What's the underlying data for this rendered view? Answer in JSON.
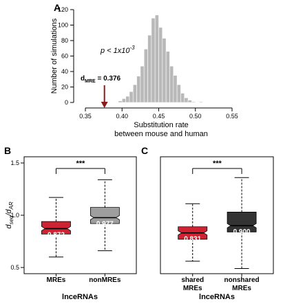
{
  "chart_data": [
    {
      "panel": "A",
      "type": "bar",
      "subtype": "histogram",
      "xlabel": "Substitution rate\nbetween mouse and human",
      "xlabel_lines": [
        "Substitution rate",
        "between mouse and human"
      ],
      "ylabel": "Number of simulations",
      "xlim": [
        0.35,
        0.55
      ],
      "ylim": [
        0,
        120
      ],
      "xticks": [
        "0.35",
        "0.40",
        "0.45",
        "0.50",
        "0.55"
      ],
      "yticks": [
        "0",
        "20",
        "40",
        "60",
        "80",
        "100",
        "120"
      ],
      "bin_width": 0.005,
      "bins": [
        {
          "x": 0.395,
          "count": 2
        },
        {
          "x": 0.4,
          "count": 5
        },
        {
          "x": 0.405,
          "count": 8
        },
        {
          "x": 0.41,
          "count": 14
        },
        {
          "x": 0.415,
          "count": 23
        },
        {
          "x": 0.42,
          "count": 34
        },
        {
          "x": 0.425,
          "count": 47
        },
        {
          "x": 0.43,
          "count": 69
        },
        {
          "x": 0.435,
          "count": 87
        },
        {
          "x": 0.44,
          "count": 109
        },
        {
          "x": 0.445,
          "count": 113
        },
        {
          "x": 0.45,
          "count": 97
        },
        {
          "x": 0.455,
          "count": 83
        },
        {
          "x": 0.46,
          "count": 66
        },
        {
          "x": 0.465,
          "count": 47
        },
        {
          "x": 0.47,
          "count": 35
        },
        {
          "x": 0.475,
          "count": 23
        },
        {
          "x": 0.48,
          "count": 12
        },
        {
          "x": 0.485,
          "count": 6
        },
        {
          "x": 0.49,
          "count": 3
        },
        {
          "x": 0.495,
          "count": 1
        },
        {
          "x": 0.505,
          "count": 1
        }
      ],
      "annotations": {
        "pvalue_prefix": "p < 1x10",
        "pvalue_exponent": "-3",
        "marker_d": "d",
        "marker_sub": "MRE",
        "marker_value": " = 0.376",
        "marker_x": 0.376
      },
      "colors": {
        "bars": "#b9b9b9",
        "arrow": "#8b1a1a"
      }
    },
    {
      "panel": "B",
      "type": "boxplot",
      "xlabel": "lnceRNAs",
      "ylabel_main": "d",
      "ylabel_sub1": "seq",
      "ylabel_slash": "/d",
      "ylabel_sub2": "AR",
      "ylim": [
        0.5,
        1.5
      ],
      "yticks": [
        "0.5",
        "1.0",
        "1.5"
      ],
      "significance": "***",
      "categories": [
        {
          "label": "MREs",
          "label_lines": [
            "MREs"
          ],
          "whisker_low": 0.6,
          "q1": 0.82,
          "median": 0.872,
          "q3": 0.94,
          "whisker_high": 1.17,
          "median_label": "0.872",
          "color": "#cf2233"
        },
        {
          "label": "nonMREs",
          "label_lines": [
            "nonMREs"
          ],
          "whisker_low": 0.66,
          "q1": 0.92,
          "median": 0.977,
          "q3": 1.075,
          "whisker_high": 1.34,
          "median_label": "0.977",
          "color": "#9e9e9e"
        }
      ]
    },
    {
      "panel": "C",
      "type": "boxplot",
      "xlabel": "lnceRNAs",
      "ylim": [
        0.5,
        1.5
      ],
      "significance": "***",
      "categories": [
        {
          "label": "shared MREs",
          "label_lines": [
            "shared",
            "MREs"
          ],
          "whisker_low": 0.56,
          "q1": 0.77,
          "median": 0.831,
          "q3": 0.89,
          "whisker_high": 1.11,
          "median_label": "0.831",
          "color": "#cf2233"
        },
        {
          "label": "nonshared MREs",
          "label_lines": [
            "nonshared",
            "MREs"
          ],
          "whisker_low": 0.49,
          "q1": 0.84,
          "median": 0.9,
          "q3": 1.03,
          "whisker_high": 1.36,
          "median_label": "0.900",
          "color": "#333333"
        }
      ]
    }
  ]
}
